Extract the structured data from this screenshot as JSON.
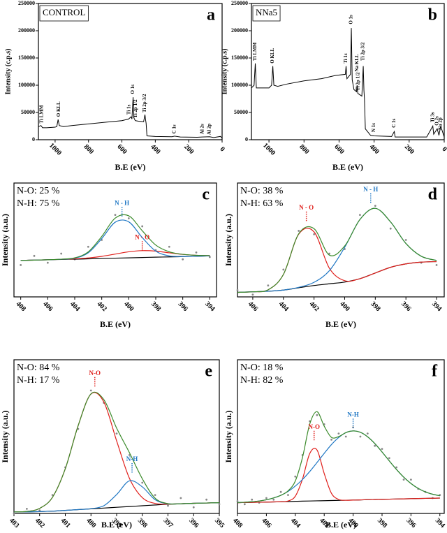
{
  "chart_data": [
    {
      "type": "line",
      "panel": "a",
      "label": "CONTROL",
      "xlabel": "B.E (eV)",
      "ylabel": "Intensity (c.p.s)",
      "xlim": [
        1100,
        0
      ],
      "xticks": [
        1000,
        800,
        600,
        400,
        200,
        0
      ],
      "ylim": [
        0,
        250000
      ],
      "yticks": [
        0,
        50000,
        100000,
        150000,
        200000,
        250000
      ],
      "x": [
        1100,
        1085,
        1075,
        1050,
        1000,
        990,
        982,
        975,
        950,
        900,
        800,
        700,
        600,
        560,
        545,
        540,
        533,
        528,
        520,
        500,
        470,
        462,
        458,
        455,
        450,
        400,
        300,
        285,
        250,
        150,
        120,
        75,
        50,
        10,
        0
      ],
      "series": [
        {
          "color": "#000000",
          "values": [
            24000,
            26000,
            22000,
            22000,
            23000,
            24000,
            37000,
            26000,
            24000,
            26000,
            29000,
            32000,
            35000,
            38000,
            42000,
            38000,
            78000,
            40000,
            35000,
            34000,
            33000,
            46000,
            36000,
            30000,
            7000,
            6000,
            5500,
            6500,
            5000,
            4500,
            5000,
            5500,
            4000,
            6000,
            3000
          ]
        }
      ],
      "annotations": [
        {
          "text": "Ti LMM",
          "x": 1080,
          "y": 30000
        },
        {
          "text": "O KLL",
          "x": 978,
          "y": 42000
        },
        {
          "text": "Ti 1s",
          "x": 556,
          "y": 46000
        },
        {
          "text": "O 1s",
          "x": 533,
          "y": 84000
        },
        {
          "text": "Ti 2p 1/2",
          "x": 518,
          "y": 40000
        },
        {
          "text": "Ti 2p 3/2",
          "x": 462,
          "y": 50000
        },
        {
          "text": "C 1s",
          "x": 285,
          "y": 11000
        },
        {
          "text": "Al 2s",
          "x": 118,
          "y": 10000
        },
        {
          "text": "Al 2p",
          "x": 75,
          "y": 9000
        }
      ]
    },
    {
      "type": "line",
      "panel": "b",
      "label": "NNa5",
      "xlabel": "B.E (eV)",
      "ylabel": "Intensity (c.p.s)",
      "xlim": [
        1100,
        0
      ],
      "xticks": [
        1000,
        800,
        600,
        400,
        200,
        0
      ],
      "ylim": [
        0,
        250000
      ],
      "yticks": [
        0,
        50000,
        100000,
        150000,
        200000,
        250000
      ],
      "x": [
        1100,
        1085,
        1078,
        1072,
        1050,
        1000,
        985,
        978,
        972,
        950,
        900,
        800,
        700,
        620,
        564,
        560,
        555,
        535,
        530,
        525,
        515,
        500,
        497,
        493,
        470,
        462,
        458,
        455,
        450,
        420,
        400,
        300,
        285,
        280,
        200,
        100,
        65,
        60,
        40,
        30,
        20,
        0
      ],
      "series": [
        {
          "color": "#000000",
          "values": [
            95000,
            100000,
            140000,
            95000,
            95000,
            95000,
            100000,
            135000,
            100000,
            98000,
            102000,
            108000,
            112000,
            118000,
            120000,
            135000,
            112000,
            120000,
            205000,
            110000,
            92000,
            88000,
            100000,
            85000,
            80000,
            135000,
            90000,
            75000,
            20000,
            8000,
            7000,
            6000,
            15000,
            5000,
            5000,
            5000,
            25000,
            10000,
            20000,
            8000,
            25000,
            5000
          ]
        }
      ],
      "annotations": [
        {
          "text": "Ti LMM",
          "x": 1078,
          "y": 145000
        },
        {
          "text": "O KLL",
          "x": 978,
          "y": 140000
        },
        {
          "text": "Ti 1s",
          "x": 560,
          "y": 140000
        },
        {
          "text": "O 1s",
          "x": 530,
          "y": 212000
        },
        {
          "text": "Na KLL",
          "x": 497,
          "y": 125000
        },
        {
          "text": "Ti 2p 3/2",
          "x": 462,
          "y": 145000
        },
        {
          "text": "Ti 2p 1/2",
          "x": 490,
          "y": 90000
        },
        {
          "text": "N 1s",
          "x": 400,
          "y": 14000
        },
        {
          "text": "C 1s",
          "x": 285,
          "y": 22000
        },
        {
          "text": "Ti 3s",
          "x": 65,
          "y": 32000
        },
        {
          "text": "O 2s",
          "x": 40,
          "y": 26000
        },
        {
          "text": "Na 2p",
          "x": 20,
          "y": 18000
        }
      ]
    },
    {
      "type": "line",
      "panel": "c",
      "xlabel": "B.E (eV)",
      "ylabel": "Intensity (a.u.)",
      "notes": [
        "N-O: 25 %",
        "N-H: 75 %"
      ],
      "xlim": [
        408.5,
        393.5
      ],
      "xticks": [
        408,
        406,
        404,
        402,
        400,
        398,
        396,
        394
      ],
      "ylim": [
        0,
        100
      ],
      "x": [
        408,
        407,
        406,
        405,
        404,
        403,
        402,
        401,
        400,
        399,
        398,
        397,
        396,
        395,
        394
      ],
      "series": [
        {
          "color": "#888888",
          "marker": "dots",
          "values": [
            28,
            36,
            30,
            38,
            33,
            44,
            50,
            72,
            69,
            62,
            41,
            44,
            33,
            39,
            35
          ]
        },
        {
          "color": "#000000",
          "values": [
            32,
            32.3,
            32.6,
            32.9,
            33.1,
            33.4,
            33.7,
            34,
            34.3,
            34.6,
            34.9,
            35.1,
            35.4,
            35.7,
            36
          ]
        },
        {
          "color": "#e0201c",
          "values": [
            32,
            32.3,
            32.6,
            33,
            33.4,
            34.2,
            35.6,
            37.6,
            39.6,
            40.6,
            40.2,
            38.7,
            37.3,
            36.5,
            36.3
          ]
        },
        {
          "color": "#1f77c4",
          "values": [
            32,
            32.3,
            32.6,
            33,
            34,
            38.7,
            51.2,
            65.6,
            65.9,
            52.1,
            40.2,
            36,
            35.5,
            35.7,
            36
          ]
        },
        {
          "color": "#3a8a2a",
          "values": [
            32,
            32.3,
            32.6,
            33.1,
            34.3,
            39.5,
            53.1,
            69.2,
            71.2,
            58.1,
            45.5,
            39.6,
            37.4,
            36.5,
            36.3
          ]
        }
      ],
      "annotations": [
        {
          "text": "N - H",
          "x": 400.5,
          "y": 82,
          "color": "#1f77c4"
        },
        {
          "text": "N - O",
          "x": 399,
          "y": 52,
          "color": "#e0201c"
        }
      ]
    },
    {
      "type": "line",
      "panel": "d",
      "xlabel": "B.E (eV)",
      "ylabel": "Intensity (a.u.)",
      "notes": [
        "N-O: 38 %",
        "N-H: 63 %"
      ],
      "xlim": [
        407,
        393.5
      ],
      "xticks": [
        406,
        404,
        402,
        400,
        398,
        396,
        394
      ],
      "ylim": [
        0,
        100
      ],
      "x": [
        407,
        406,
        405,
        404,
        403,
        402,
        401,
        400,
        399,
        398,
        397,
        396,
        395,
        394
      ],
      "series": [
        {
          "color": "#888888",
          "marker": "dots",
          "values": [
            6,
            2,
            10,
            24,
            58,
            55,
            38,
            42,
            72,
            80,
            60,
            50,
            30,
            28
          ]
        },
        {
          "color": "#000000",
          "values": [
            4,
            4.5,
            5,
            6,
            8,
            10,
            11.5,
            13,
            16,
            21,
            26,
            29,
            30.5,
            31
          ]
        },
        {
          "color": "#e0201c",
          "values": [
            4,
            4.5,
            6.2,
            19.7,
            55.1,
            57.1,
            25.2,
            14.2,
            16,
            21,
            26,
            29,
            30.5,
            31
          ]
        },
        {
          "color": "#1f77c4",
          "values": [
            4,
            4.5,
            5,
            6,
            8.4,
            12.8,
            23,
            43.5,
            68,
            77.8,
            65.8,
            46.9,
            35.7,
            32
          ]
        },
        {
          "color": "#3a8a2a",
          "values": [
            4,
            4.5,
            6.2,
            19.7,
            55.5,
            59.9,
            36.7,
            44.7,
            68,
            77.8,
            65.8,
            46.9,
            35.7,
            32
          ]
        }
      ],
      "annotations": [
        {
          "text": "N - O",
          "x": 402.5,
          "y": 78,
          "color": "#e0201c"
        },
        {
          "text": "N - H",
          "x": 398.3,
          "y": 94,
          "color": "#1f77c4"
        }
      ]
    },
    {
      "type": "line",
      "panel": "e",
      "xlabel": "B.E (eV)",
      "ylabel": "Intensity (a.u.)",
      "notes": [
        "N-O: 84 %",
        "N-H: 17 %"
      ],
      "xlim": [
        403,
        395
      ],
      "xticks": [
        403,
        402,
        401,
        400,
        399,
        398,
        397,
        396,
        395
      ],
      "ylim": [
        0,
        100
      ],
      "x": [
        403,
        402.5,
        402,
        401.5,
        401,
        400.5,
        400,
        399.5,
        399,
        398.5,
        398,
        397.5,
        397,
        396.5,
        396,
        395.5,
        395
      ],
      "series": [
        {
          "color": "#888888",
          "marker": "dots",
          "values": [
            0,
            3,
            2,
            12,
            30,
            55,
            80,
            72,
            52,
            38,
            20,
            12,
            5,
            10,
            4,
            9,
            6
          ]
        },
        {
          "color": "#000000",
          "values": [
            1,
            1,
            1.2,
            1.5,
            2,
            2.5,
            3,
            3.5,
            4,
            4.5,
            5,
            5.5,
            6,
            6.3,
            6.6,
            6.8,
            7
          ]
        },
        {
          "color": "#e0201c",
          "values": [
            1,
            1.3,
            3.3,
            10.5,
            29.1,
            57.1,
            77.7,
            72.6,
            47.2,
            22.8,
            10.3,
            6.5,
            6.1,
            6.3,
            6.6,
            6.8,
            7
          ]
        },
        {
          "color": "#1f77c4",
          "values": [
            1,
            1,
            1.2,
            1.5,
            2,
            2.5,
            3.1,
            5,
            12.3,
            21.2,
            17.3,
            8.9,
            6.3,
            6.3,
            6.6,
            6.8,
            7
          ]
        },
        {
          "color": "#3a8a2a",
          "values": [
            1,
            1.3,
            3.3,
            10.5,
            29.1,
            57.1,
            77.8,
            74.1,
            55.5,
            39.5,
            22.6,
            9.9,
            6.4,
            6.3,
            6.6,
            6.8,
            7
          ]
        }
      ],
      "annotations": [
        {
          "text": "N-O",
          "x": 399.85,
          "y": 91,
          "color": "#e0201c"
        },
        {
          "text": "N-H",
          "x": 398.4,
          "y": 35,
          "color": "#1f77c4"
        }
      ]
    },
    {
      "type": "line",
      "panel": "f",
      "xlabel": "B.E (eV)",
      "ylabel": "Intensity (a.u.)",
      "notes": [
        "N-O: 18 %",
        "N-H: 82 %"
      ],
      "xlim": [
        408,
        393.7
      ],
      "xticks": [
        408,
        406,
        404,
        402,
        400,
        398,
        396,
        394
      ],
      "ylim": [
        0,
        100
      ],
      "x": [
        408,
        407.5,
        407,
        406.5,
        406,
        405.5,
        405,
        404.5,
        404,
        403.5,
        403,
        402.5,
        402,
        401.5,
        401,
        400.5,
        400,
        399.5,
        399,
        398.5,
        398,
        397.5,
        397,
        396.5,
        396,
        395.5,
        395,
        394.5,
        394
      ],
      "series": [
        {
          "color": "#888888",
          "marker": "dots",
          "values": [
            8,
            6,
            9,
            7,
            10,
            9,
            14,
            12,
            24,
            38,
            60,
            64,
            58,
            48,
            52,
            50,
            56,
            50,
            52,
            44,
            42,
            36,
            30,
            22,
            22,
            16,
            14,
            10,
            12
          ]
        },
        {
          "color": "#000000",
          "values": [
            7,
            7.1,
            7.2,
            7.3,
            7.4,
            7.5,
            7.6,
            7.7,
            7.9,
            8,
            8.1,
            8.2,
            8.3,
            8.4,
            8.5,
            8.6,
            8.7,
            8.8,
            9,
            9.1,
            9.2,
            9.3,
            9.4,
            9.5,
            9.6,
            9.7,
            9.8,
            9.9,
            10
          ]
        },
        {
          "color": "#e0201c",
          "values": [
            7,
            7.1,
            7.2,
            7.3,
            7.4,
            7.5,
            7.6,
            8.1,
            11.2,
            22.4,
            39,
            41.3,
            26,
            13.1,
            9.1,
            8.6,
            8.7,
            8.8,
            9,
            9.1,
            9.2,
            9.3,
            9.4,
            9.5,
            9.6,
            9.7,
            9.8,
            9.9,
            10
          ]
        },
        {
          "color": "#1f77c4",
          "values": [
            7.1,
            7.3,
            7.6,
            8.1,
            8.9,
            10.1,
            11.8,
            14.3,
            17.8,
            22.1,
            27.3,
            33.1,
            39.1,
            44.8,
            49.4,
            52.6,
            53.7,
            52.8,
            49.9,
            45.5,
            40,
            34.2,
            28.6,
            23.6,
            19.5,
            16.3,
            14,
            12.5,
            11.5
          ]
        },
        {
          "color": "#3a8a2a",
          "values": [
            7.1,
            7.3,
            7.6,
            8.1,
            8.9,
            10.1,
            11.8,
            14.7,
            21.1,
            36.5,
            58.2,
            66.2,
            56.8,
            49.5,
            50,
            52.6,
            53.7,
            52.8,
            49.9,
            45.5,
            40,
            34.2,
            28.6,
            23.6,
            19.5,
            16.3,
            14,
            12.5,
            11.5
          ]
        }
      ],
      "annotations": [
        {
          "text": "N-O",
          "x": 402.7,
          "y": 56,
          "color": "#e0201c"
        },
        {
          "text": "N-H",
          "x": 400,
          "y": 64,
          "color": "#1f77c4"
        }
      ]
    }
  ]
}
